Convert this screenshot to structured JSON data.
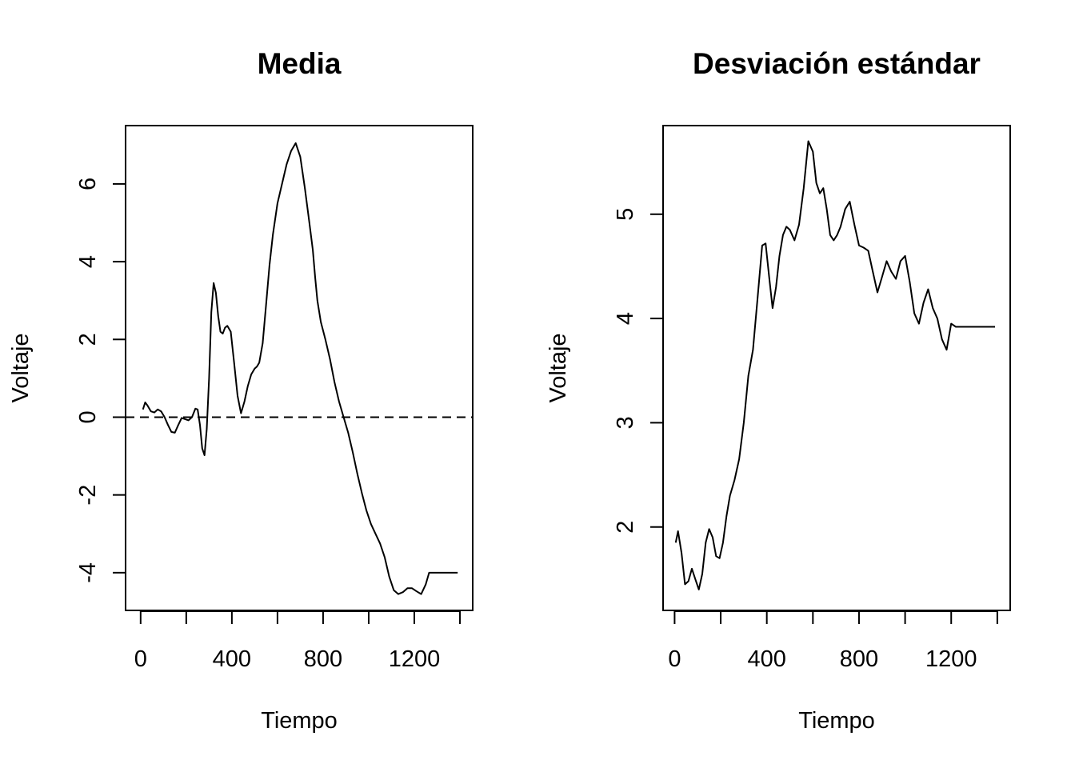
{
  "chart_data": [
    {
      "type": "line",
      "title": "Media",
      "xlabel": "Tiempo",
      "ylabel": "Voltaje",
      "xlim": [
        -66,
        1456
      ],
      "ylim": [
        -4.97,
        7.5
      ],
      "x_ticks": [
        0,
        200,
        400,
        600,
        800,
        1000,
        1200,
        1400
      ],
      "x_tick_labels": [
        "0",
        "",
        "400",
        "",
        "800",
        "",
        "1200",
        ""
      ],
      "y_ticks": [
        -4,
        -2,
        0,
        2,
        4,
        6
      ],
      "y_tick_labels": [
        "-4",
        "-2",
        "0",
        "2",
        "4",
        "6"
      ],
      "reference_line": {
        "y": 0,
        "style": "dashed"
      },
      "series": [
        {
          "x": [
            10,
            20,
            30,
            45,
            60,
            75,
            90,
            105,
            120,
            135,
            150,
            165,
            180,
            195,
            210,
            225,
            240,
            250,
            260,
            270,
            280,
            290,
            300,
            310,
            320,
            330,
            340,
            350,
            360,
            370,
            380,
            395,
            410,
            425,
            440,
            455,
            470,
            485,
            500,
            510,
            520,
            535,
            550,
            565,
            580,
            600,
            620,
            640,
            660,
            680,
            700,
            720,
            740,
            755,
            765,
            775,
            790,
            810,
            830,
            850,
            870,
            890,
            910,
            930,
            950,
            970,
            990,
            1010,
            1030,
            1050,
            1070,
            1090,
            1110,
            1130,
            1150,
            1170,
            1190,
            1210,
            1230,
            1250,
            1265,
            1280,
            1300,
            1320,
            1340,
            1360,
            1375,
            1390
          ],
          "y": [
            0.2,
            0.38,
            0.3,
            0.15,
            0.12,
            0.2,
            0.15,
            0.0,
            -0.2,
            -0.38,
            -0.4,
            -0.2,
            -0.02,
            -0.05,
            -0.08,
            0.0,
            0.22,
            0.2,
            -0.2,
            -0.8,
            -0.98,
            -0.3,
            1.0,
            2.7,
            3.45,
            3.2,
            2.6,
            2.2,
            2.15,
            2.3,
            2.35,
            2.2,
            1.4,
            0.55,
            0.1,
            0.4,
            0.8,
            1.1,
            1.25,
            1.3,
            1.4,
            1.9,
            2.9,
            3.9,
            4.7,
            5.5,
            6.0,
            6.5,
            6.85,
            7.05,
            6.7,
            5.9,
            5.0,
            4.3,
            3.6,
            3.0,
            2.45,
            2.0,
            1.5,
            0.9,
            0.4,
            0.0,
            -0.4,
            -0.9,
            -1.45,
            -1.95,
            -2.4,
            -2.75,
            -3.0,
            -3.25,
            -3.6,
            -4.1,
            -4.45,
            -4.55,
            -4.5,
            -4.4,
            -4.4,
            -4.48,
            -4.55,
            -4.3,
            -4.0,
            -4.0,
            -4.0,
            -4.0,
            -4.0,
            -4.0,
            -4.0,
            -4.0
          ]
        }
      ]
    },
    {
      "type": "line",
      "title": "Desviación estándar",
      "xlabel": "Tiempo",
      "ylabel": "Voltaje",
      "xlim": [
        -50,
        1456
      ],
      "ylim": [
        1.2,
        5.85
      ],
      "x_ticks": [
        0,
        200,
        400,
        600,
        800,
        1000,
        1200,
        1400
      ],
      "x_tick_labels": [
        "0",
        "",
        "400",
        "",
        "800",
        "",
        "1200",
        ""
      ],
      "y_ticks": [
        2,
        3,
        4,
        5
      ],
      "y_tick_labels": [
        "2",
        "3",
        "4",
        "5"
      ],
      "series": [
        {
          "x": [
            5,
            15,
            30,
            45,
            60,
            75,
            90,
            105,
            120,
            135,
            150,
            165,
            180,
            195,
            210,
            225,
            240,
            260,
            280,
            300,
            320,
            340,
            360,
            380,
            395,
            410,
            425,
            440,
            455,
            470,
            485,
            500,
            520,
            540,
            560,
            580,
            600,
            615,
            630,
            645,
            660,
            675,
            690,
            705,
            720,
            740,
            760,
            780,
            800,
            820,
            840,
            860,
            880,
            900,
            920,
            940,
            960,
            980,
            1000,
            1020,
            1040,
            1060,
            1080,
            1100,
            1120,
            1140,
            1160,
            1180,
            1200,
            1220,
            1240,
            1260,
            1280,
            1300,
            1320,
            1340,
            1360,
            1375,
            1390
          ],
          "y": [
            1.85,
            1.96,
            1.75,
            1.45,
            1.48,
            1.6,
            1.5,
            1.4,
            1.55,
            1.85,
            1.98,
            1.9,
            1.72,
            1.7,
            1.85,
            2.1,
            2.3,
            2.45,
            2.65,
            3.0,
            3.45,
            3.7,
            4.2,
            4.7,
            4.72,
            4.4,
            4.1,
            4.3,
            4.6,
            4.8,
            4.88,
            4.85,
            4.75,
            4.9,
            5.25,
            5.7,
            5.6,
            5.3,
            5.2,
            5.25,
            5.05,
            4.8,
            4.75,
            4.8,
            4.88,
            5.05,
            5.12,
            4.9,
            4.7,
            4.68,
            4.65,
            4.45,
            4.25,
            4.4,
            4.55,
            4.45,
            4.38,
            4.55,
            4.6,
            4.35,
            4.05,
            3.95,
            4.15,
            4.28,
            4.1,
            4.0,
            3.8,
            3.7,
            3.95,
            3.92,
            3.92,
            3.92,
            3.92,
            3.92,
            3.92,
            3.92,
            3.92,
            3.92,
            3.92
          ]
        }
      ]
    }
  ]
}
